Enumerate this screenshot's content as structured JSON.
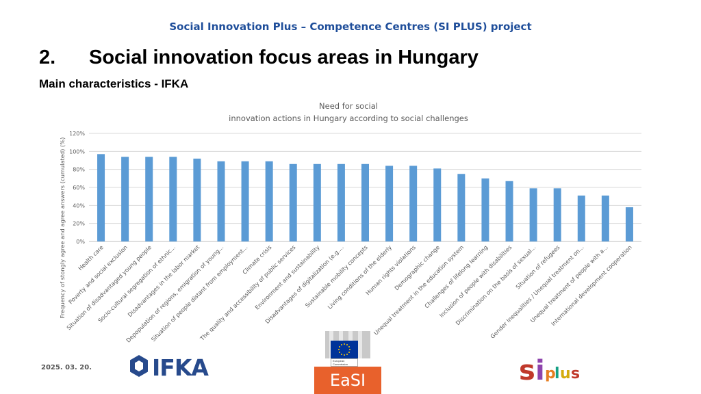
{
  "header": {
    "project": "Social Innovation Plus – Competence Centres (SI PLUS) project"
  },
  "section": {
    "number": "2.",
    "title": "Social innovation focus areas in Hungary"
  },
  "subtitle": "Main characteristics - IFKA",
  "footer": {
    "date": "2025. 03. 20.",
    "ifka_logo_text": "IFKA",
    "easi_text": "EaSI",
    "ec_text": "European Commission",
    "siplus_text": "siplus"
  },
  "colors": {
    "bar": "#5b9bd5",
    "header": "#1f4e9a",
    "grid": "#d9d9d9",
    "text": "#595959"
  },
  "chart_data": {
    "type": "bar",
    "title_lines": [
      "Need for social",
      "innovation actions in Hungary according to social challenges"
    ],
    "ylabel": "Frequency of stongly agree and agree answers (cumulated) (%)",
    "xlabel": "",
    "ylim": [
      0,
      120
    ],
    "yticks": [
      "0%",
      "20%",
      "40%",
      "60%",
      "80%",
      "100%",
      "120%"
    ],
    "grid": true,
    "categories": [
      "Health care",
      "Poverty and social exclusion",
      "Situation of disadvantaged young people",
      "Socio-cultural segregation of ethnic...",
      "Disadvantages in the labor market",
      "Depopulation of regions, emigration of young...",
      "Situation of people distant from employment...",
      "Climate crisis",
      "The quality and accessibility of public services",
      "Environment and sustainability",
      "Disadvantages of digitalization (e.g....",
      "Sustainable mobility concepts",
      "Living conditions of the elderly",
      "Human rights violations",
      "Demographic change",
      "Unequal treatment in the education system",
      "Challenges of lifelong learning",
      "Inclusion of people with disabilities",
      "Discrimination on the basis of sexual...",
      "Situation of refugees",
      "Gender Inequalities / Unequal treatment on...",
      "Unequal treatment of people with a...",
      "International development cooperation"
    ],
    "values": [
      97,
      94,
      94,
      94,
      92,
      89,
      89,
      89,
      86,
      86,
      86,
      86,
      84,
      84,
      81,
      75,
      70,
      67,
      59,
      59,
      51,
      51,
      38
    ]
  }
}
